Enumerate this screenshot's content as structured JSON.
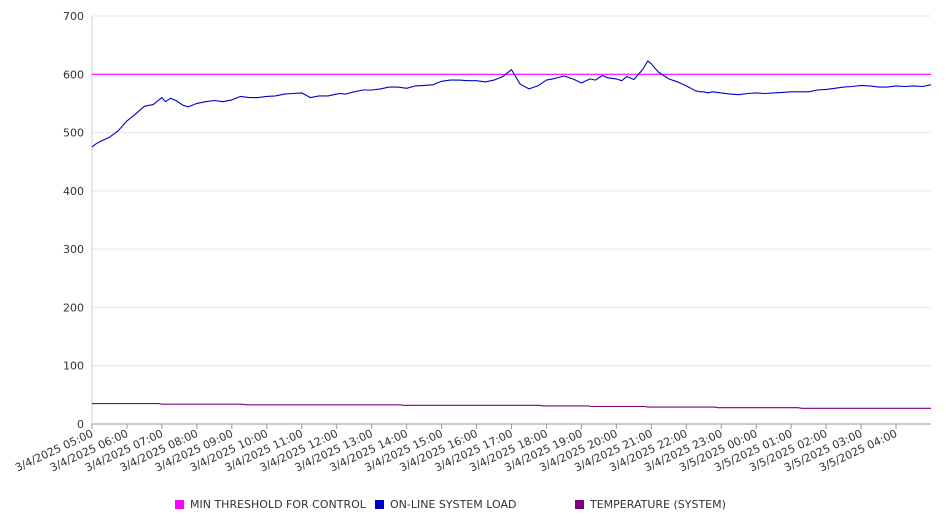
{
  "chart_data": {
    "type": "line",
    "title": "",
    "xlabel": "",
    "ylabel": "",
    "ylim": [
      0,
      700
    ],
    "yticks": [
      "0",
      "100",
      "200",
      "300",
      "400",
      "500",
      "600",
      "700"
    ],
    "x_ticks": [
      "3/4/2025 05:00",
      "3/4/2025 06:00",
      "3/4/2025 07:00",
      "3/4/2025 08:00",
      "3/4/2025 09:00",
      "3/4/2025 10:00",
      "3/4/2025 11:00",
      "3/4/2025 12:00",
      "3/4/2025 13:00",
      "3/4/2025 14:00",
      "3/4/2025 15:00",
      "3/4/2025 16:00",
      "3/4/2025 17:00",
      "3/4/2025 18:00",
      "3/4/2025 19:00",
      "3/4/2025 20:00",
      "3/4/2025 21:00",
      "3/4/2025 22:00",
      "3/4/2025 23:00",
      "3/5/2025 00:00",
      "3/5/2025 01:00",
      "3/5/2025 02:00",
      "3/5/2025 03:00",
      "3/5/2025 04:00"
    ],
    "x_range_hours": [
      0,
      24
    ],
    "grid": true,
    "legend_position": "bottom",
    "series": [
      {
        "name": "MIN THRESHOLD FOR CONTROL",
        "color": "#ff00ff",
        "x_hours": [
          0,
          24
        ],
        "values": [
          600,
          600
        ]
      },
      {
        "name": "ON-LINE SYSTEM LOAD",
        "color": "#0000cc",
        "x_hours": [
          0,
          0.1,
          0.25,
          0.5,
          0.75,
          1.0,
          1.25,
          1.5,
          1.75,
          2.0,
          2.1,
          2.25,
          2.4,
          2.6,
          2.75,
          3.0,
          3.25,
          3.5,
          3.75,
          4.0,
          4.25,
          4.5,
          4.75,
          5.0,
          5.25,
          5.5,
          5.75,
          6.0,
          6.25,
          6.5,
          6.75,
          7.0,
          7.1,
          7.25,
          7.5,
          7.75,
          8.0,
          8.25,
          8.5,
          8.75,
          9.0,
          9.25,
          9.5,
          9.75,
          10.0,
          10.25,
          10.5,
          10.75,
          11.0,
          11.25,
          11.5,
          11.75,
          12.0,
          12.25,
          12.5,
          12.75,
          13.0,
          13.25,
          13.5,
          13.75,
          13.9,
          14.0,
          14.1,
          14.25,
          14.4,
          14.6,
          14.75,
          15.0,
          15.15,
          15.3,
          15.5,
          15.75,
          15.9,
          16.0,
          16.2,
          16.35,
          16.5,
          16.7,
          16.9,
          17.0,
          17.1,
          17.25,
          17.4,
          17.5,
          17.6,
          17.75,
          18.0,
          18.25,
          18.5,
          18.75,
          19.0,
          19.25,
          19.5,
          19.75,
          20.0,
          20.25,
          20.5,
          20.75,
          21.0,
          21.25,
          21.5,
          21.75,
          22.0,
          22.25,
          22.5,
          22.75,
          23.0,
          23.25,
          23.5,
          23.75,
          24.0
        ],
        "values": [
          475,
          480,
          485,
          492,
          503,
          520,
          532,
          545,
          548,
          560,
          553,
          559,
          555,
          547,
          544,
          550,
          553,
          555,
          553,
          556,
          562,
          560,
          560,
          562,
          563,
          566,
          567,
          568,
          560,
          563,
          563,
          566,
          567,
          566,
          570,
          573,
          573,
          575,
          578,
          578,
          576,
          580,
          581,
          582,
          588,
          590,
          590,
          589,
          589,
          587,
          590,
          596,
          608,
          583,
          575,
          580,
          590,
          593,
          597,
          592,
          588,
          585,
          588,
          592,
          590,
          598,
          594,
          592,
          589,
          596,
          591,
          608,
          623,
          618,
          604,
          598,
          592,
          588,
          583,
          580,
          577,
          572,
          570,
          570,
          568,
          570,
          568,
          566,
          565,
          567,
          568,
          567,
          568,
          569,
          570,
          570,
          570,
          573,
          574,
          576,
          578,
          579,
          581,
          580,
          578,
          578,
          580,
          579,
          580,
          579,
          582
        ]
      },
      {
        "name": "TEMPERATURE (SYSTEM)",
        "color": "#800080",
        "x_hours": [
          0,
          1.9,
          2.0,
          4.3,
          4.4,
          8.8,
          8.9,
          12.8,
          12.9,
          14.2,
          14.3,
          15.8,
          15.9,
          17.8,
          17.9,
          20.2,
          20.3,
          24.0
        ],
        "values": [
          35,
          35,
          34,
          34,
          33,
          33,
          32,
          32,
          31,
          31,
          30,
          30,
          29,
          29,
          28,
          28,
          27,
          27
        ]
      }
    ]
  }
}
